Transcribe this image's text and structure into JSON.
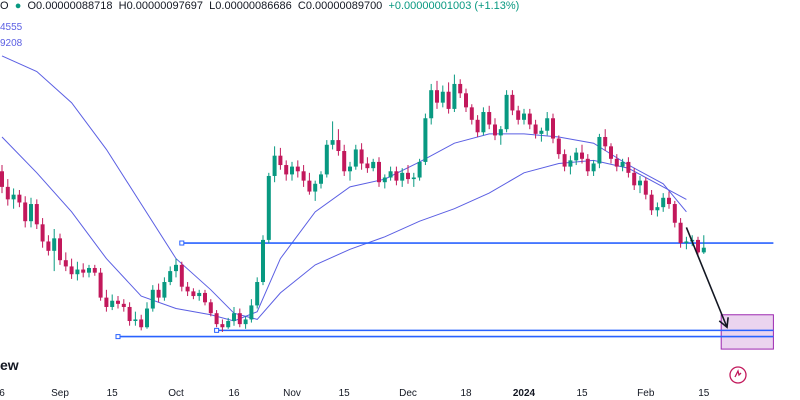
{
  "header": {
    "ticker_suffix": "O",
    "open": "O0.00000088718",
    "high": "H0.00000097697",
    "low": "L0.00000086686",
    "close": "C0.00000089700",
    "change": "+0.00000001003 (+1.13%)",
    "indicator_1": "4555",
    "indicator_2": "9208"
  },
  "watermark_text": "ew",
  "colors": {
    "up": "#089981",
    "down": "#c2185b",
    "ma": "#5b5fe3",
    "hline": "#2962ff",
    "box": "#ce93d8",
    "arrow": "#131722"
  },
  "chart_data": {
    "type": "candlestick",
    "title": "",
    "xlabel": "",
    "ylabel": "",
    "x_ticks": [
      {
        "label": "6",
        "i": 0
      },
      {
        "label": "Sep",
        "i": 10
      },
      {
        "label": "15",
        "i": 19
      },
      {
        "label": "Oct",
        "i": 30
      },
      {
        "label": "16",
        "i": 40
      },
      {
        "label": "Nov",
        "i": 50
      },
      {
        "label": "15",
        "i": 59
      },
      {
        "label": "Dec",
        "i": 70
      },
      {
        "label": "18",
        "i": 80
      },
      {
        "label": "2024",
        "i": 90,
        "bold": true
      },
      {
        "label": "15",
        "i": 100
      },
      {
        "label": "Feb",
        "i": 111
      },
      {
        "label": "15",
        "i": 121
      }
    ],
    "ohlc": [
      [
        14.6,
        15.0,
        13.2,
        13.6
      ],
      [
        13.6,
        14.1,
        12.4,
        12.8
      ],
      [
        12.8,
        13.5,
        12.2,
        13.1
      ],
      [
        13.1,
        13.4,
        12.3,
        12.6
      ],
      [
        12.6,
        13.0,
        11.0,
        11.4
      ],
      [
        11.4,
        12.9,
        11.0,
        12.5
      ],
      [
        12.5,
        12.8,
        10.9,
        11.2
      ],
      [
        11.2,
        11.6,
        9.7,
        10.1
      ],
      [
        10.1,
        10.5,
        9.2,
        9.5
      ],
      [
        9.5,
        10.9,
        8.2,
        10.3
      ],
      [
        10.3,
        10.6,
        8.6,
        8.9
      ],
      [
        8.9,
        9.4,
        8.2,
        8.5
      ],
      [
        8.5,
        9.0,
        7.7,
        8.0
      ],
      [
        8.0,
        8.8,
        7.6,
        8.3
      ],
      [
        8.3,
        8.7,
        7.8,
        8.1
      ],
      [
        8.1,
        8.6,
        7.8,
        8.4
      ],
      [
        8.4,
        8.6,
        7.9,
        8.1
      ],
      [
        8.1,
        8.4,
        6.3,
        6.5
      ],
      [
        6.5,
        7.0,
        5.6,
        5.9
      ],
      [
        5.9,
        6.7,
        5.7,
        6.3
      ],
      [
        6.3,
        6.6,
        5.8,
        6.1
      ],
      [
        6.1,
        6.4,
        5.6,
        5.9
      ],
      [
        5.9,
        6.2,
        4.7,
        5.0
      ],
      [
        5.0,
        5.6,
        4.7,
        5.1
      ],
      [
        5.1,
        5.4,
        4.4,
        4.6
      ],
      [
        4.6,
        6.2,
        4.5,
        5.8
      ],
      [
        5.8,
        7.3,
        5.6,
        7.0
      ],
      [
        7.0,
        7.4,
        6.2,
        6.5
      ],
      [
        6.5,
        7.8,
        6.3,
        7.5
      ],
      [
        7.5,
        8.5,
        7.3,
        8.2
      ],
      [
        8.2,
        9.0,
        7.8,
        8.6
      ],
      [
        8.6,
        8.8,
        6.9,
        7.2
      ],
      [
        7.2,
        7.5,
        6.6,
        6.9
      ],
      [
        6.9,
        7.1,
        6.4,
        6.6
      ],
      [
        6.6,
        7.0,
        6.3,
        6.8
      ],
      [
        6.8,
        7.0,
        6.0,
        6.2
      ],
      [
        6.2,
        6.4,
        5.3,
        5.5
      ],
      [
        5.5,
        5.7,
        4.6,
        4.8
      ],
      [
        4.8,
        5.1,
        4.3,
        4.6
      ],
      [
        4.6,
        5.2,
        4.5,
        5.0
      ],
      [
        5.0,
        5.9,
        4.7,
        5.5
      ],
      [
        5.5,
        5.8,
        4.6,
        4.8
      ],
      [
        4.8,
        5.3,
        4.5,
        5.1
      ],
      [
        5.1,
        6.4,
        4.9,
        6.0
      ],
      [
        6.0,
        7.8,
        5.8,
        7.5
      ],
      [
        7.5,
        10.5,
        7.3,
        10.2
      ],
      [
        10.2,
        14.5,
        10.0,
        14.3
      ],
      [
        14.3,
        16.2,
        13.9,
        15.6
      ],
      [
        15.6,
        16.1,
        14.7,
        15.0
      ],
      [
        15.0,
        15.3,
        14.0,
        14.4
      ],
      [
        14.4,
        15.2,
        14.0,
        14.9
      ],
      [
        14.9,
        15.3,
        14.2,
        14.6
      ],
      [
        14.6,
        15.0,
        13.6,
        14.0
      ],
      [
        14.0,
        14.5,
        13.1,
        13.3
      ],
      [
        13.3,
        14.0,
        12.7,
        13.8
      ],
      [
        13.8,
        14.6,
        13.5,
        14.4
      ],
      [
        14.4,
        16.6,
        14.2,
        16.3
      ],
      [
        16.3,
        17.8,
        16.0,
        16.6
      ],
      [
        16.6,
        17.3,
        15.6,
        15.9
      ],
      [
        15.9,
        16.3,
        14.3,
        14.6
      ],
      [
        14.6,
        15.2,
        14.0,
        14.9
      ],
      [
        14.9,
        16.3,
        14.7,
        16.0
      ],
      [
        16.0,
        16.4,
        14.7,
        15.1
      ],
      [
        15.1,
        15.5,
        14.5,
        14.8
      ],
      [
        14.8,
        15.4,
        14.6,
        15.2
      ],
      [
        15.2,
        15.5,
        13.6,
        13.9
      ],
      [
        13.9,
        14.4,
        13.5,
        14.2
      ],
      [
        14.2,
        14.9,
        14.0,
        14.6
      ],
      [
        14.6,
        14.9,
        13.7,
        14.0
      ],
      [
        14.0,
        14.8,
        13.6,
        14.5
      ],
      [
        14.5,
        15.0,
        13.8,
        14.1
      ],
      [
        14.1,
        14.5,
        13.6,
        14.2
      ],
      [
        14.2,
        15.4,
        14.0,
        15.2
      ],
      [
        15.2,
        18.3,
        15.0,
        18.0
      ],
      [
        18.0,
        20.2,
        17.6,
        19.8
      ],
      [
        19.8,
        20.4,
        18.6,
        19.0
      ],
      [
        19.0,
        20.1,
        18.7,
        19.7
      ],
      [
        19.7,
        20.3,
        18.3,
        18.6
      ],
      [
        18.6,
        20.8,
        18.4,
        20.2
      ],
      [
        20.2,
        20.5,
        19.3,
        19.6
      ],
      [
        19.6,
        19.9,
        18.4,
        18.7
      ],
      [
        18.7,
        18.9,
        17.6,
        17.9
      ],
      [
        17.9,
        18.2,
        16.8,
        17.1
      ],
      [
        17.1,
        18.7,
        16.9,
        18.4
      ],
      [
        18.4,
        18.8,
        17.3,
        17.6
      ],
      [
        17.6,
        18.0,
        16.6,
        16.9
      ],
      [
        16.9,
        17.5,
        16.3,
        17.3
      ],
      [
        17.3,
        19.8,
        17.1,
        19.5
      ],
      [
        19.5,
        19.8,
        18.2,
        18.5
      ],
      [
        18.5,
        18.8,
        17.6,
        17.9
      ],
      [
        17.9,
        18.6,
        17.6,
        18.3
      ],
      [
        18.3,
        18.6,
        17.3,
        17.6
      ],
      [
        17.6,
        17.9,
        16.7,
        17.0
      ],
      [
        17.0,
        17.4,
        16.5,
        17.2
      ],
      [
        17.2,
        18.4,
        16.9,
        18.0
      ],
      [
        18.0,
        18.3,
        16.4,
        16.7
      ],
      [
        16.7,
        16.9,
        15.4,
        15.7
      ],
      [
        15.7,
        16.0,
        14.6,
        14.9
      ],
      [
        14.9,
        15.6,
        14.4,
        15.3
      ],
      [
        15.3,
        16.1,
        15.0,
        15.8
      ],
      [
        15.8,
        16.3,
        15.1,
        15.4
      ],
      [
        15.4,
        15.7,
        14.3,
        14.6
      ],
      [
        14.6,
        15.3,
        14.3,
        15.1
      ],
      [
        15.1,
        17.0,
        14.8,
        16.8
      ],
      [
        16.8,
        17.3,
        15.9,
        16.2
      ],
      [
        16.2,
        16.4,
        15.1,
        15.4
      ],
      [
        15.4,
        15.7,
        14.6,
        14.9
      ],
      [
        14.9,
        15.4,
        14.6,
        15.2
      ],
      [
        15.2,
        15.5,
        14.2,
        14.5
      ],
      [
        14.5,
        14.8,
        13.4,
        13.7
      ],
      [
        13.7,
        14.3,
        13.2,
        14.0
      ],
      [
        14.0,
        14.2,
        12.8,
        13.1
      ],
      [
        13.1,
        13.4,
        11.8,
        12.1
      ],
      [
        12.1,
        12.6,
        11.7,
        12.3
      ],
      [
        12.3,
        13.2,
        12.0,
        12.9
      ],
      [
        12.9,
        13.3,
        12.2,
        12.5
      ],
      [
        12.5,
        12.7,
        11.0,
        11.3
      ],
      [
        11.3,
        11.6,
        9.7,
        10.0
      ],
      [
        10.0,
        10.4,
        9.6,
        10.1
      ],
      [
        10.1,
        10.5,
        9.8,
        10.2
      ],
      [
        10.2,
        10.4,
        9.2,
        9.4
      ],
      [
        9.4,
        10.5,
        9.3,
        9.7
      ]
    ],
    "moving_averages": [
      {
        "values": [
          [
            0,
            22.0
          ],
          [
            6,
            21.0
          ],
          [
            12,
            19.0
          ],
          [
            18,
            16.0
          ],
          [
            24,
            12.5
          ],
          [
            30,
            9.0
          ],
          [
            36,
            7.0
          ],
          [
            40,
            5.5
          ],
          [
            44,
            5.1
          ],
          [
            48,
            6.8
          ],
          [
            54,
            8.6
          ],
          [
            60,
            9.6
          ],
          [
            66,
            10.4
          ],
          [
            72,
            11.4
          ],
          [
            78,
            12.2
          ],
          [
            84,
            13.2
          ],
          [
            90,
            14.5
          ],
          [
            96,
            15.1
          ],
          [
            102,
            15.3
          ],
          [
            108,
            14.8
          ],
          [
            114,
            13.6
          ],
          [
            118,
            12.8
          ]
        ]
      },
      {
        "values": [
          [
            0,
            16.8
          ],
          [
            6,
            14.5
          ],
          [
            12,
            12.0
          ],
          [
            18,
            9.0
          ],
          [
            24,
            6.6
          ],
          [
            30,
            5.8
          ],
          [
            36,
            5.4
          ],
          [
            40,
            5.0
          ],
          [
            44,
            5.6
          ],
          [
            48,
            9.0
          ],
          [
            54,
            12.0
          ],
          [
            60,
            13.6
          ],
          [
            66,
            14.1
          ],
          [
            72,
            15.2
          ],
          [
            78,
            16.4
          ],
          [
            84,
            17.0
          ],
          [
            90,
            17.0
          ],
          [
            96,
            16.8
          ],
          [
            102,
            16.4
          ],
          [
            108,
            15.0
          ],
          [
            114,
            13.8
          ],
          [
            118,
            12.0
          ]
        ]
      }
    ],
    "horizontal_lines": [
      {
        "y": 10.0,
        "x_start_i": 31,
        "x_end_i": 133
      },
      {
        "y": 4.4,
        "x_start_i": 37,
        "x_end_i": 133
      },
      {
        "y": 4.0,
        "x_start_i": 20,
        "x_end_i": 133
      }
    ],
    "projection_box": {
      "x_start_i": 124,
      "x_end_i": 133,
      "y_low": 3.2,
      "y_high": 5.4
    },
    "arrow": {
      "from_i": 118,
      "from_y": 11.0,
      "to_i": 125,
      "to_y": 4.6
    },
    "ylim": [
      2.5,
      24.3
    ]
  }
}
